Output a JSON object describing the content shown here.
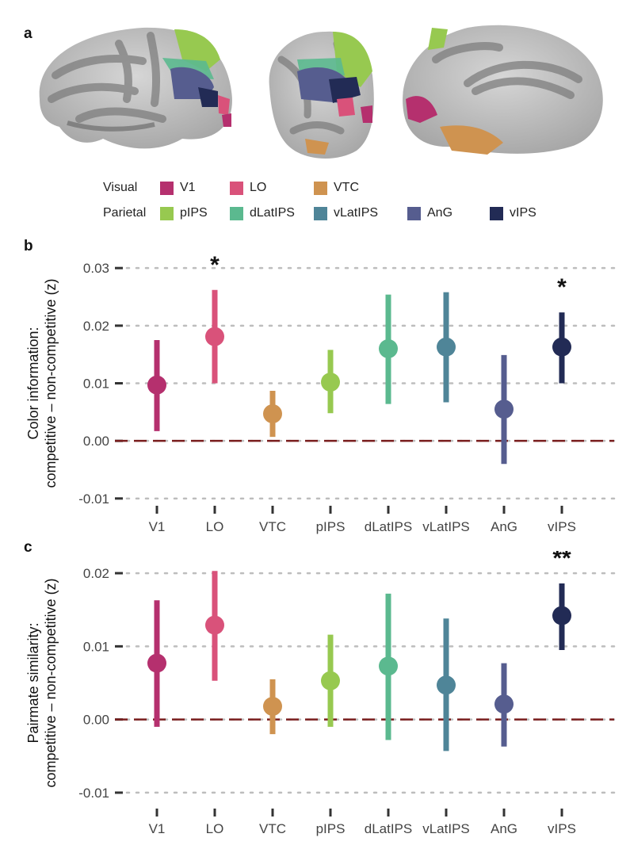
{
  "panels": {
    "a": "a",
    "b": "b",
    "c": "c"
  },
  "legend": {
    "visual_label": "Visual",
    "parietal_label": "Parietal",
    "visual_items": [
      {
        "name": "V1",
        "color": "#b5306e"
      },
      {
        "name": "LO",
        "color": "#d9527a"
      },
      {
        "name": "VTC",
        "color": "#cf9350"
      }
    ],
    "parietal_items": [
      {
        "name": "pIPS",
        "color": "#97c950"
      },
      {
        "name": "dLatIPS",
        "color": "#5bb98f"
      },
      {
        "name": "vLatIPS",
        "color": "#4f8598"
      },
      {
        "name": "AnG",
        "color": "#565d8f"
      },
      {
        "name": "vIPS",
        "color": "#222b55"
      }
    ]
  },
  "chart_data": [
    {
      "type": "scatter",
      "panel": "b",
      "ylabel_line1": "Color information:",
      "ylabel_line2": "competitive – non-competitive (z)",
      "categories": [
        "V1",
        "LO",
        "VTC",
        "pIPS",
        "dLatIPS",
        "vLatIPS",
        "AnG",
        "vIPS"
      ],
      "colors": [
        "#b5306e",
        "#d9527a",
        "#cf9350",
        "#97c950",
        "#5bb98f",
        "#4f8598",
        "#565d8f",
        "#222b55"
      ],
      "values": [
        0.0097,
        0.0181,
        0.0047,
        0.0102,
        0.016,
        0.0163,
        0.0055,
        0.0163
      ],
      "lower": [
        0.0017,
        0.01,
        0.0007,
        0.0048,
        0.0064,
        0.0067,
        -0.004,
        0.01
      ],
      "upper": [
        0.0175,
        0.0262,
        0.0087,
        0.0158,
        0.0254,
        0.0258,
        0.0149,
        0.0223
      ],
      "annotations": [
        "",
        "*",
        "",
        "",
        "",
        "",
        "",
        "*"
      ],
      "yticks": [
        -0.01,
        0.0,
        0.01,
        0.02,
        0.03
      ],
      "ytick_labels": [
        "-0.01",
        "0.00",
        "0.01",
        "0.02",
        "0.03"
      ],
      "ylim": [
        -0.0125,
        0.0325
      ],
      "reference_line": 0.0,
      "grid": "horizontal dotted"
    },
    {
      "type": "scatter",
      "panel": "c",
      "ylabel_line1": "Pairmate similarity:",
      "ylabel_line2": "competitive – non-competitive (z)",
      "categories": [
        "V1",
        "LO",
        "VTC",
        "pIPS",
        "dLatIPS",
        "vLatIPS",
        "AnG",
        "vIPS"
      ],
      "colors": [
        "#b5306e",
        "#d9527a",
        "#cf9350",
        "#97c950",
        "#5bb98f",
        "#4f8598",
        "#565d8f",
        "#222b55"
      ],
      "values": [
        0.0077,
        0.0129,
        0.0018,
        0.0053,
        0.0073,
        0.0047,
        0.0021,
        0.0142
      ],
      "lower": [
        -0.001,
        0.0053,
        -0.002,
        -0.001,
        -0.0028,
        -0.0043,
        -0.0037,
        0.0095
      ],
      "upper": [
        0.0163,
        0.0203,
        0.0055,
        0.0116,
        0.0172,
        0.0138,
        0.0077,
        0.0186
      ],
      "annotations": [
        "",
        "",
        "",
        "",
        "",
        "",
        "",
        "**"
      ],
      "yticks": [
        -0.01,
        0.0,
        0.01,
        0.02
      ],
      "ytick_labels": [
        "-0.01",
        "0.00",
        "0.01",
        "0.02"
      ],
      "ylim": [
        -0.0125,
        0.0225
      ],
      "reference_line": 0.0,
      "grid": "horizontal dotted"
    }
  ]
}
